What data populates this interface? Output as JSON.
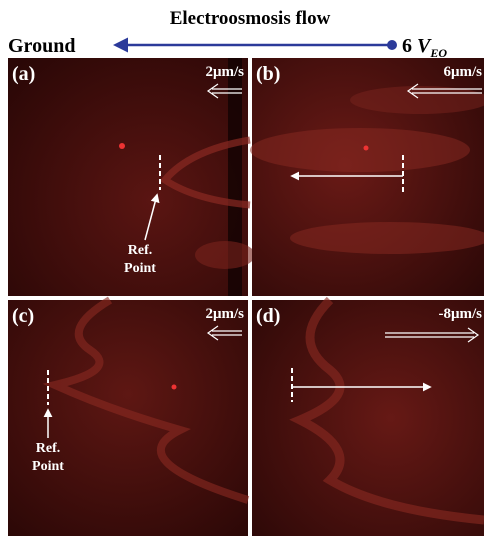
{
  "header": {
    "title": "Electroosmosis flow",
    "left": "Ground",
    "right": {
      "prefix": "6",
      "symbol": "V",
      "subscript": "EO"
    }
  },
  "panels": [
    {
      "label": "(a)",
      "speed": "2μm/s",
      "annotation": [
        "Ref.",
        "Point"
      ]
    },
    {
      "label": "(b)",
      "speed": "6μm/s"
    },
    {
      "label": "(c)",
      "speed": "2μm/s",
      "annotation": [
        "Ref.",
        "Point"
      ]
    },
    {
      "label": "(d)",
      "speed": "-8μm/s"
    }
  ]
}
